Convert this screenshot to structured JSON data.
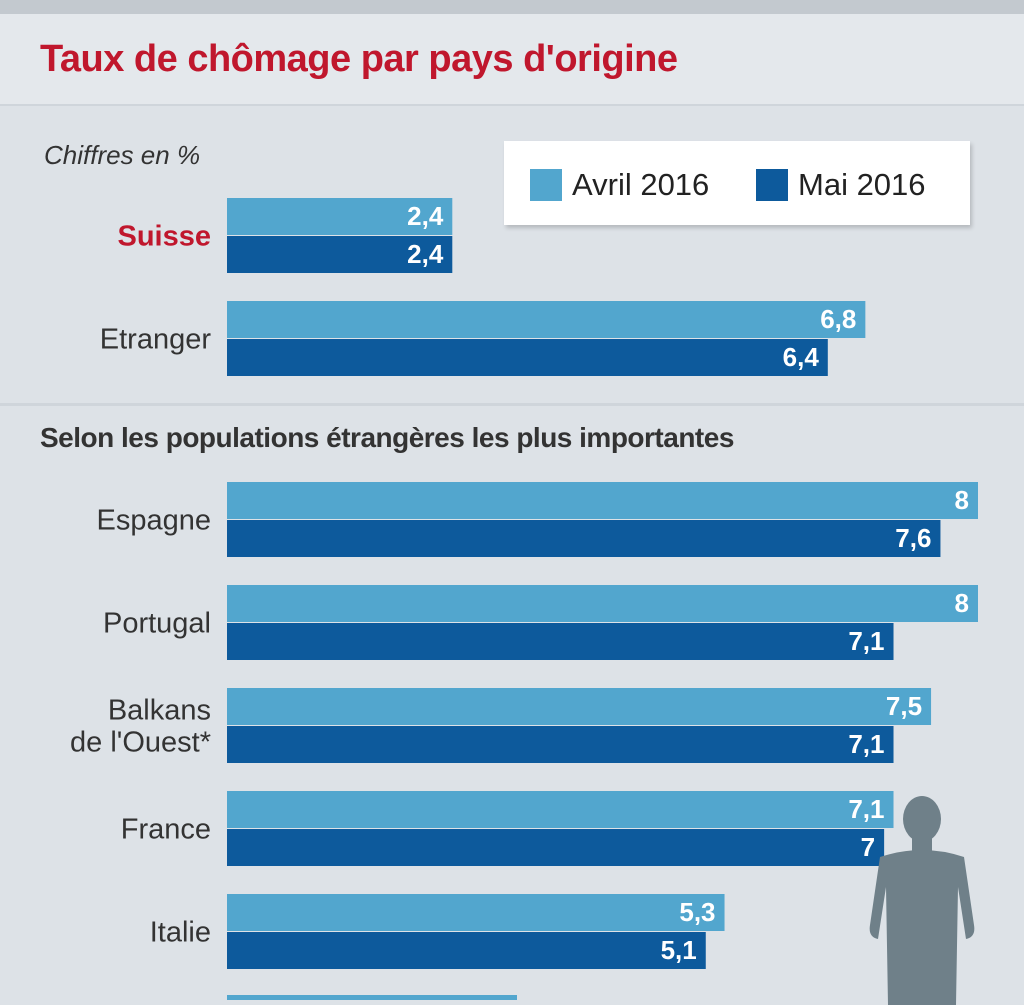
{
  "title": "Taux de chômage par pays d'origine",
  "colors": {
    "title": "#c0172d",
    "highlight_label": "#c0172d",
    "series_1": "#52a6ce",
    "series_2": "#0d5a9c",
    "background": "#dde2e7",
    "silhouette": "#6f8089"
  },
  "chart_data": {
    "type": "bar",
    "orientation": "horizontal",
    "title": "Taux de chômage par pays d'origine",
    "unit_note": "Chiffres en %",
    "legend": {
      "placement": "top-right"
    },
    "series": [
      {
        "name": "Avril 2016",
        "color": "#52a6ce"
      },
      {
        "name": "Mai 2016",
        "color": "#0d5a9c"
      }
    ],
    "xlim": [
      0,
      8
    ],
    "grid": false,
    "groups": [
      {
        "title": "",
        "rows": [
          {
            "label": "Suisse",
            "highlight": true,
            "values": [
              2.4,
              2.4
            ],
            "value_labels": [
              "2,4",
              "2,4"
            ]
          },
          {
            "label": "Etranger",
            "values": [
              6.8,
              6.4
            ],
            "value_labels": [
              "6,8",
              "6,4"
            ]
          }
        ]
      },
      {
        "title": "Selon les populations étrangères les plus importantes",
        "rows": [
          {
            "label": "Espagne",
            "values": [
              8,
              7.6
            ],
            "value_labels": [
              "8",
              "7,6"
            ]
          },
          {
            "label": "Portugal",
            "values": [
              8,
              7.1
            ],
            "value_labels": [
              "8",
              "7,1"
            ]
          },
          {
            "label": "Balkans\nde l'Ouest*",
            "values": [
              7.5,
              7.1
            ],
            "value_labels": [
              "7,5",
              "7,1"
            ]
          },
          {
            "label": "France",
            "values": [
              7.1,
              7
            ],
            "value_labels": [
              "7,1",
              "7"
            ]
          },
          {
            "label": "Italie",
            "values": [
              5.3,
              5.1
            ],
            "value_labels": [
              "5,3",
              "5,1"
            ]
          }
        ]
      }
    ]
  }
}
